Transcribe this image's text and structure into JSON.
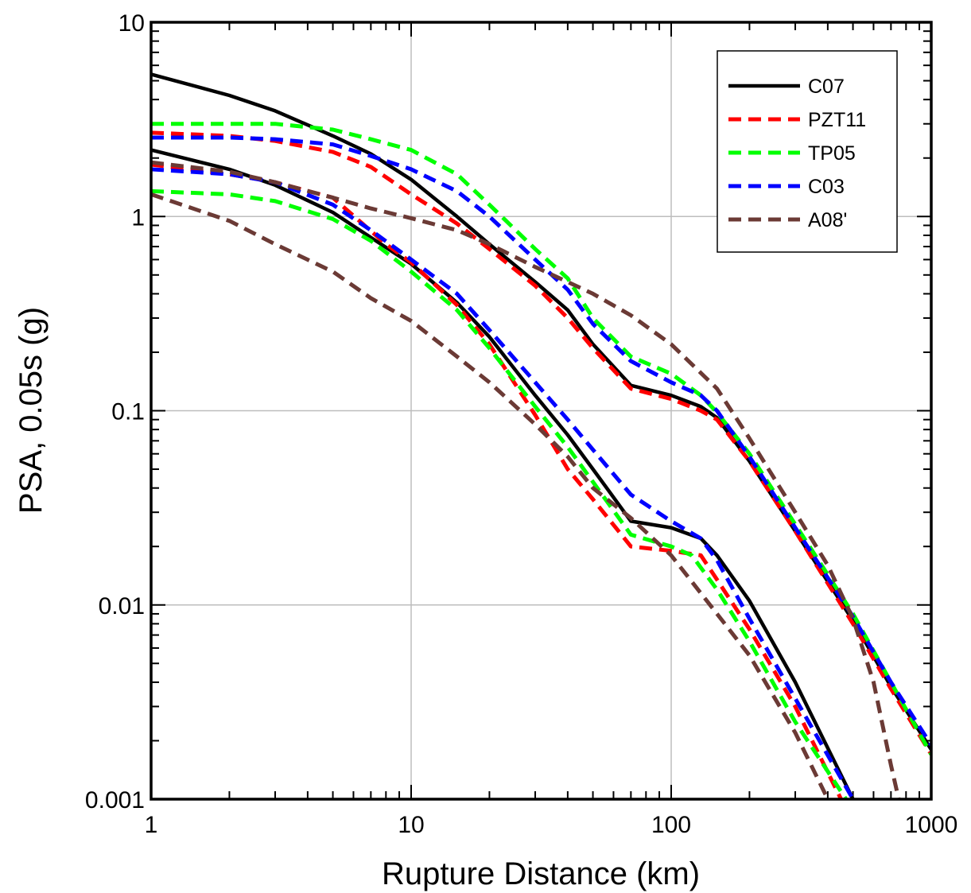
{
  "chart_data": {
    "type": "line",
    "xlabel": "Rupture Distance (km)",
    "ylabel": "PSA, 0.05s (g)",
    "xscale": "log",
    "yscale": "log",
    "xlim": [
      1,
      1000
    ],
    "ylim": [
      0.001,
      10
    ],
    "xticks": [
      1,
      10,
      100,
      1000
    ],
    "xtick_labels": [
      "1",
      "10",
      "100",
      "1000"
    ],
    "yticks": [
      0.001,
      0.01,
      0.1,
      1,
      10
    ],
    "ytick_labels": [
      "0.001",
      "0.01",
      "0.1",
      "1",
      "10"
    ],
    "grid": "major",
    "legend_position": "top-right",
    "series": [
      {
        "name": "C07",
        "color": "#000000",
        "dash": "solid",
        "curves": [
          [
            [
              1,
              5.4
            ],
            [
              2,
              4.2
            ],
            [
              3,
              3.5
            ],
            [
              5,
              2.6
            ],
            [
              7,
              2.1
            ],
            [
              10,
              1.55
            ],
            [
              15,
              1.0
            ],
            [
              20,
              0.72
            ],
            [
              30,
              0.46
            ],
            [
              40,
              0.33
            ],
            [
              50,
              0.22
            ],
            [
              70,
              0.135
            ],
            [
              100,
              0.12
            ],
            [
              130,
              0.105
            ],
            [
              150,
              0.092
            ],
            [
              200,
              0.055
            ],
            [
              300,
              0.024
            ],
            [
              500,
              0.0083
            ],
            [
              700,
              0.0038
            ],
            [
              1000,
              0.0018
            ]
          ],
          [
            [
              1,
              2.2
            ],
            [
              2,
              1.75
            ],
            [
              3,
              1.45
            ],
            [
              5,
              1.05
            ],
            [
              7,
              0.78
            ],
            [
              10,
              0.57
            ],
            [
              15,
              0.36
            ],
            [
              20,
              0.24
            ],
            [
              30,
              0.12
            ],
            [
              40,
              0.075
            ],
            [
              50,
              0.05
            ],
            [
              70,
              0.027
            ],
            [
              100,
              0.025
            ],
            [
              130,
              0.022
            ],
            [
              150,
              0.018
            ],
            [
              200,
              0.0105
            ],
            [
              300,
              0.004
            ],
            [
              500,
              0.001
            ]
          ]
        ]
      },
      {
        "name": "PZT11",
        "color": "#ff0000",
        "dash": "dashed",
        "curves": [
          [
            [
              1,
              2.7
            ],
            [
              2,
              2.6
            ],
            [
              3,
              2.45
            ],
            [
              5,
              2.15
            ],
            [
              7,
              1.8
            ],
            [
              10,
              1.3
            ],
            [
              15,
              0.92
            ],
            [
              20,
              0.68
            ],
            [
              30,
              0.44
            ],
            [
              40,
              0.3
            ],
            [
              50,
              0.21
            ],
            [
              70,
              0.13
            ],
            [
              100,
              0.115
            ],
            [
              130,
              0.1
            ],
            [
              150,
              0.09
            ],
            [
              200,
              0.055
            ],
            [
              300,
              0.024
            ],
            [
              500,
              0.008
            ],
            [
              700,
              0.0037
            ],
            [
              1000,
              0.0017
            ]
          ],
          [
            [
              1,
              1.85
            ],
            [
              2,
              1.65
            ],
            [
              3,
              1.5
            ],
            [
              5,
              1.25
            ],
            [
              8,
              0.72
            ],
            [
              10,
              0.58
            ],
            [
              15,
              0.35
            ],
            [
              20,
              0.22
            ],
            [
              30,
              0.095
            ],
            [
              40,
              0.05
            ],
            [
              50,
              0.035
            ],
            [
              70,
              0.02
            ],
            [
              100,
              0.019
            ],
            [
              130,
              0.018
            ],
            [
              150,
              0.0135
            ],
            [
              200,
              0.0075
            ],
            [
              300,
              0.003
            ],
            [
              450,
              0.001
            ]
          ]
        ]
      },
      {
        "name": "TP05",
        "color": "#00ff00",
        "dash": "dashed",
        "curves": [
          [
            [
              1,
              3.0
            ],
            [
              2,
              3.0
            ],
            [
              3,
              3.0
            ],
            [
              5,
              2.8
            ],
            [
              7,
              2.5
            ],
            [
              10,
              2.2
            ],
            [
              15,
              1.65
            ],
            [
              20,
              1.15
            ],
            [
              30,
              0.68
            ],
            [
              40,
              0.48
            ],
            [
              50,
              0.3
            ],
            [
              70,
              0.19
            ],
            [
              100,
              0.155
            ],
            [
              130,
              0.12
            ],
            [
              150,
              0.098
            ],
            [
              200,
              0.06
            ],
            [
              300,
              0.026
            ],
            [
              500,
              0.009
            ],
            [
              700,
              0.004
            ],
            [
              1000,
              0.0017
            ]
          ],
          [
            [
              1,
              1.35
            ],
            [
              2,
              1.3
            ],
            [
              3,
              1.2
            ],
            [
              5,
              0.97
            ],
            [
              7,
              0.75
            ],
            [
              10,
              0.52
            ],
            [
              15,
              0.33
            ],
            [
              20,
              0.21
            ],
            [
              30,
              0.105
            ],
            [
              40,
              0.065
            ],
            [
              50,
              0.043
            ],
            [
              70,
              0.023
            ],
            [
              100,
              0.02
            ],
            [
              120,
              0.018
            ],
            [
              150,
              0.012
            ],
            [
              200,
              0.0065
            ],
            [
              300,
              0.0025
            ],
            [
              470,
              0.001
            ]
          ]
        ]
      },
      {
        "name": "C03",
        "color": "#0000ff",
        "dash": "dashed",
        "curves": [
          [
            [
              1,
              2.55
            ],
            [
              2,
              2.55
            ],
            [
              3,
              2.5
            ],
            [
              5,
              2.35
            ],
            [
              7,
              2.05
            ],
            [
              10,
              1.75
            ],
            [
              15,
              1.35
            ],
            [
              20,
              1.0
            ],
            [
              30,
              0.6
            ],
            [
              40,
              0.42
            ],
            [
              50,
              0.28
            ],
            [
              70,
              0.18
            ],
            [
              100,
              0.14
            ],
            [
              130,
              0.12
            ],
            [
              150,
              0.1
            ],
            [
              200,
              0.058
            ],
            [
              300,
              0.025
            ],
            [
              500,
              0.0087
            ],
            [
              700,
              0.004
            ],
            [
              1000,
              0.0019
            ]
          ],
          [
            [
              1,
              1.75
            ],
            [
              2,
              1.65
            ],
            [
              3,
              1.5
            ],
            [
              5,
              1.15
            ],
            [
              7,
              0.85
            ],
            [
              10,
              0.6
            ],
            [
              15,
              0.4
            ],
            [
              20,
              0.26
            ],
            [
              30,
              0.14
            ],
            [
              40,
              0.09
            ],
            [
              50,
              0.063
            ],
            [
              70,
              0.037
            ],
            [
              100,
              0.027
            ],
            [
              130,
              0.022
            ],
            [
              150,
              0.017
            ],
            [
              200,
              0.0085
            ],
            [
              300,
              0.0033
            ],
            [
              500,
              0.001
            ]
          ]
        ]
      },
      {
        "name": "A08'",
        "color": "#6b3a35",
        "dash": "dashed",
        "curves": [
          [
            [
              1,
              1.9
            ],
            [
              2,
              1.7
            ],
            [
              3,
              1.5
            ],
            [
              5,
              1.25
            ],
            [
              7,
              1.1
            ],
            [
              10,
              0.98
            ],
            [
              15,
              0.85
            ],
            [
              20,
              0.72
            ],
            [
              30,
              0.55
            ],
            [
              40,
              0.46
            ],
            [
              50,
              0.4
            ],
            [
              70,
              0.31
            ],
            [
              100,
              0.22
            ],
            [
              150,
              0.13
            ],
            [
              200,
              0.072
            ],
            [
              300,
              0.03
            ],
            [
              400,
              0.016
            ],
            [
              500,
              0.0085
            ],
            [
              600,
              0.004
            ],
            [
              700,
              0.0015
            ],
            [
              750,
              0.001
            ]
          ],
          [
            [
              1,
              1.3
            ],
            [
              2,
              0.95
            ],
            [
              3,
              0.72
            ],
            [
              5,
              0.52
            ],
            [
              7,
              0.38
            ],
            [
              10,
              0.29
            ],
            [
              15,
              0.19
            ],
            [
              20,
              0.14
            ],
            [
              30,
              0.085
            ],
            [
              40,
              0.058
            ],
            [
              50,
              0.04
            ],
            [
              70,
              0.028
            ],
            [
              100,
              0.018
            ],
            [
              150,
              0.009
            ],
            [
              200,
              0.0055
            ],
            [
              300,
              0.0022
            ],
            [
              400,
              0.001
            ]
          ]
        ]
      }
    ]
  }
}
